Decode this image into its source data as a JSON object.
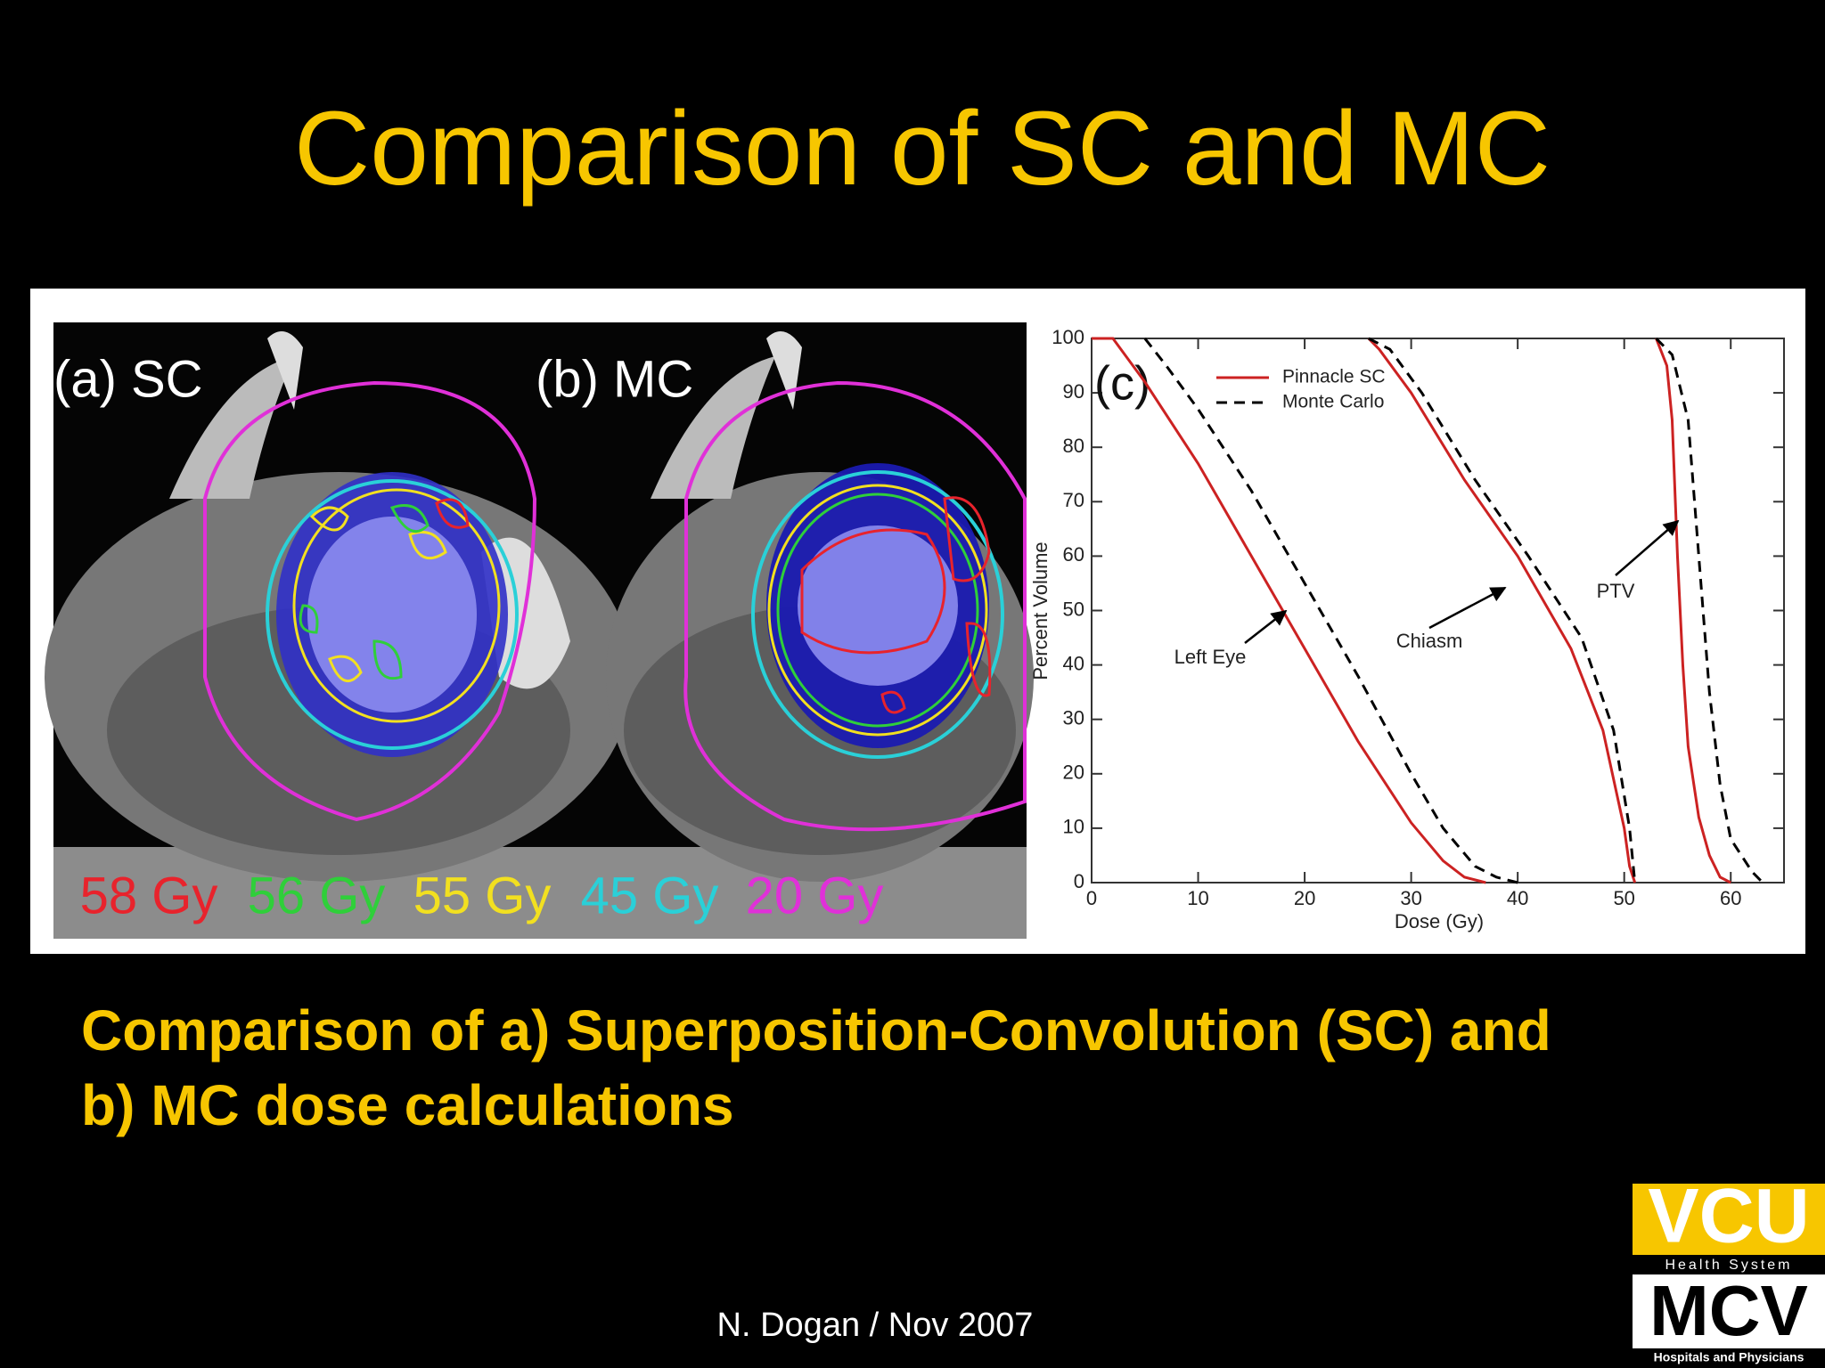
{
  "title": "Comparison of SC and MC",
  "figure": {
    "panels": [
      "(a) SC",
      "(b) MC"
    ],
    "dose_levels": [
      {
        "label": "58 Gy",
        "color": "#e8232c"
      },
      {
        "label": "56 Gy",
        "color": "#2fcf3a"
      },
      {
        "label": "55 Gy",
        "color": "#f2e020"
      },
      {
        "label": "45 Gy",
        "color": "#2ad0d8"
      },
      {
        "label": "20 Gy",
        "color": "#e030d8"
      }
    ]
  },
  "chart_data": {
    "type": "line",
    "panel_label": "(c)",
    "x_label": "Dose (Gy)",
    "y_label": "Percent Volume",
    "xlim": [
      0,
      65
    ],
    "ylim": [
      0,
      100
    ],
    "xticks": [
      0,
      10,
      20,
      30,
      40,
      50,
      60
    ],
    "yticks": [
      0,
      10,
      20,
      30,
      40,
      50,
      60,
      70,
      80,
      90,
      100
    ],
    "annotations": [
      "Left Eye",
      "Chiasm",
      "PTV"
    ],
    "series": [
      {
        "name": "Pinnacle SC",
        "color": "#cc2222",
        "line_style": "solid",
        "curves": [
          {
            "x": [
              0,
              2,
              5,
              10,
              15,
              20,
              25,
              30,
              33,
              35,
              37
            ],
            "values": [
              100,
              100,
              92,
              77,
              60,
              43,
              26,
              11,
              4,
              1,
              0
            ]
          },
          {
            "x": [
              26,
              27,
              30,
              35,
              40,
              45,
              48,
              50,
              50.5,
              51
            ],
            "values": [
              100,
              98,
              90,
              74,
              60,
              43,
              28,
              10,
              3,
              0
            ]
          },
          {
            "x": [
              53,
              54,
              54.5,
              55,
              55.5,
              56,
              57,
              58,
              59,
              60
            ],
            "values": [
              100,
              95,
              85,
              60,
              40,
              25,
              12,
              5,
              1,
              0
            ]
          }
        ]
      },
      {
        "name": "Monte Carlo",
        "color": "#000000",
        "line_style": "dashed",
        "curves": [
          {
            "x": [
              5,
              7,
              10,
              15,
              20,
              25,
              30,
              33,
              36,
              38,
              40
            ],
            "values": [
              100,
              95,
              87,
              72,
              55,
              38,
              20,
              10,
              3,
              1,
              0
            ]
          },
          {
            "x": [
              26,
              28,
              31,
              36,
              41,
              46,
              49,
              50.5,
              51
            ],
            "values": [
              100,
              98,
              90,
              74,
              60,
              45,
              28,
              10,
              0
            ]
          },
          {
            "x": [
              53,
              54.5,
              56,
              57,
              58,
              59,
              60,
              62,
              63
            ],
            "values": [
              100,
              97,
              85,
              60,
              35,
              18,
              8,
              2,
              0
            ]
          }
        ]
      }
    ]
  },
  "caption": [
    "Comparison of a) Superposition-Convolution (SC) and",
    "b) MC dose calculations"
  ],
  "footer": "N. Dogan / Nov 2007",
  "logo": {
    "top": "VCU",
    "band": "Health System",
    "middle": "MCV",
    "bottom": "Hospitals and Physicians"
  }
}
